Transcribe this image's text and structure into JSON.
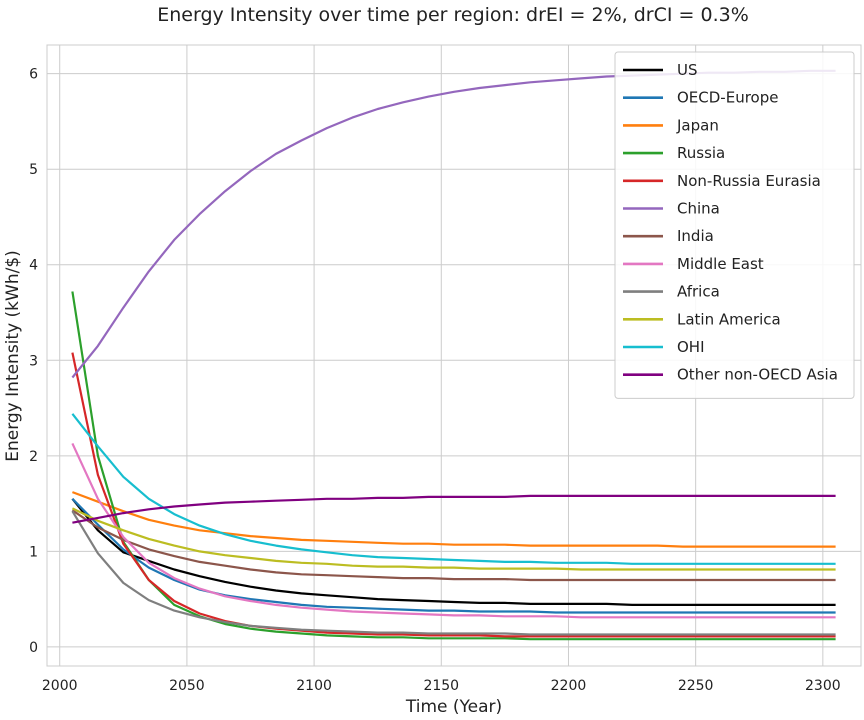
{
  "chart_data": {
    "type": "line",
    "title": "Energy Intensity over time per region: drEI = 2%, drCI = 0.3%",
    "xlabel": "Time (Year)",
    "ylabel": "Energy Intensity (kWh/$)",
    "xlim": [
      1995,
      2315
    ],
    "ylim": [
      -0.2,
      6.3
    ],
    "xticks": [
      2000,
      2050,
      2100,
      2150,
      2200,
      2250,
      2300
    ],
    "yticks": [
      0,
      1,
      2,
      3,
      4,
      5,
      6
    ],
    "grid": true,
    "legend_position": "top-right",
    "x": [
      2005,
      2015,
      2025,
      2035,
      2045,
      2055,
      2065,
      2075,
      2085,
      2095,
      2105,
      2115,
      2125,
      2135,
      2145,
      2155,
      2165,
      2175,
      2185,
      2195,
      2205,
      2215,
      2225,
      2235,
      2245,
      2255,
      2265,
      2275,
      2285,
      2295,
      2305
    ],
    "series": [
      {
        "name": "US",
        "color": "#000000",
        "values": [
          1.55,
          1.22,
          0.99,
          0.9,
          0.81,
          0.74,
          0.68,
          0.63,
          0.59,
          0.56,
          0.54,
          0.52,
          0.5,
          0.49,
          0.48,
          0.47,
          0.46,
          0.46,
          0.45,
          0.45,
          0.45,
          0.45,
          0.44,
          0.44,
          0.44,
          0.44,
          0.44,
          0.44,
          0.44,
          0.44,
          0.44
        ]
      },
      {
        "name": "OECD-Europe",
        "color": "#1f77b4",
        "values": [
          1.55,
          1.28,
          1.02,
          0.83,
          0.7,
          0.6,
          0.54,
          0.5,
          0.47,
          0.44,
          0.42,
          0.41,
          0.4,
          0.39,
          0.38,
          0.38,
          0.37,
          0.37,
          0.37,
          0.36,
          0.36,
          0.36,
          0.36,
          0.36,
          0.36,
          0.36,
          0.36,
          0.36,
          0.36,
          0.36,
          0.36
        ]
      },
      {
        "name": "Japan",
        "color": "#ff7f0e",
        "values": [
          1.62,
          1.52,
          1.42,
          1.33,
          1.27,
          1.22,
          1.19,
          1.16,
          1.14,
          1.12,
          1.11,
          1.1,
          1.09,
          1.08,
          1.08,
          1.07,
          1.07,
          1.07,
          1.06,
          1.06,
          1.06,
          1.06,
          1.06,
          1.06,
          1.05,
          1.05,
          1.05,
          1.05,
          1.05,
          1.05,
          1.05
        ]
      },
      {
        "name": "Russia",
        "color": "#2ca02c",
        "values": [
          3.72,
          2.0,
          1.1,
          0.7,
          0.44,
          0.32,
          0.24,
          0.19,
          0.16,
          0.14,
          0.12,
          0.11,
          0.1,
          0.1,
          0.09,
          0.09,
          0.09,
          0.09,
          0.08,
          0.08,
          0.08,
          0.08,
          0.08,
          0.08,
          0.08,
          0.08,
          0.08,
          0.08,
          0.08,
          0.08,
          0.08
        ]
      },
      {
        "name": "Non-Russia Eurasia",
        "color": "#d62728",
        "values": [
          3.08,
          1.8,
          1.08,
          0.7,
          0.48,
          0.35,
          0.27,
          0.22,
          0.19,
          0.17,
          0.15,
          0.14,
          0.13,
          0.13,
          0.12,
          0.12,
          0.12,
          0.11,
          0.11,
          0.11,
          0.11,
          0.11,
          0.11,
          0.11,
          0.11,
          0.11,
          0.11,
          0.11,
          0.11,
          0.11,
          0.11
        ]
      },
      {
        "name": "China",
        "color": "#9467bd",
        "values": [
          2.82,
          3.15,
          3.55,
          3.93,
          4.26,
          4.53,
          4.77,
          4.98,
          5.16,
          5.3,
          5.43,
          5.54,
          5.63,
          5.7,
          5.76,
          5.81,
          5.85,
          5.88,
          5.91,
          5.93,
          5.95,
          5.97,
          5.98,
          5.99,
          6.0,
          6.01,
          6.01,
          6.02,
          6.02,
          6.03,
          6.03
        ]
      },
      {
        "name": "India",
        "color": "#8c564b",
        "values": [
          1.43,
          1.25,
          1.12,
          1.02,
          0.95,
          0.89,
          0.85,
          0.81,
          0.78,
          0.76,
          0.75,
          0.74,
          0.73,
          0.72,
          0.72,
          0.71,
          0.71,
          0.71,
          0.7,
          0.7,
          0.7,
          0.7,
          0.7,
          0.7,
          0.7,
          0.7,
          0.7,
          0.7,
          0.7,
          0.7,
          0.7
        ]
      },
      {
        "name": "Middle East",
        "color": "#e377c2",
        "values": [
          2.13,
          1.55,
          1.15,
          0.88,
          0.72,
          0.61,
          0.53,
          0.48,
          0.44,
          0.41,
          0.39,
          0.37,
          0.36,
          0.35,
          0.34,
          0.33,
          0.33,
          0.32,
          0.32,
          0.32,
          0.31,
          0.31,
          0.31,
          0.31,
          0.31,
          0.31,
          0.31,
          0.31,
          0.31,
          0.31,
          0.31
        ]
      },
      {
        "name": "Africa",
        "color": "#7f7f7f",
        "values": [
          1.42,
          0.98,
          0.67,
          0.49,
          0.38,
          0.31,
          0.26,
          0.22,
          0.2,
          0.18,
          0.17,
          0.16,
          0.15,
          0.15,
          0.14,
          0.14,
          0.14,
          0.14,
          0.13,
          0.13,
          0.13,
          0.13,
          0.13,
          0.13,
          0.13,
          0.13,
          0.13,
          0.13,
          0.13,
          0.13,
          0.13
        ]
      },
      {
        "name": "Latin America",
        "color": "#bcbd22",
        "values": [
          1.45,
          1.32,
          1.22,
          1.13,
          1.06,
          1.0,
          0.96,
          0.93,
          0.9,
          0.88,
          0.87,
          0.85,
          0.84,
          0.84,
          0.83,
          0.83,
          0.82,
          0.82,
          0.82,
          0.82,
          0.81,
          0.81,
          0.81,
          0.81,
          0.81,
          0.81,
          0.81,
          0.81,
          0.81,
          0.81,
          0.81
        ]
      },
      {
        "name": "OHI",
        "color": "#17becf",
        "values": [
          2.44,
          2.1,
          1.78,
          1.55,
          1.39,
          1.27,
          1.18,
          1.11,
          1.06,
          1.02,
          0.99,
          0.96,
          0.94,
          0.93,
          0.92,
          0.91,
          0.9,
          0.89,
          0.89,
          0.88,
          0.88,
          0.88,
          0.87,
          0.87,
          0.87,
          0.87,
          0.87,
          0.87,
          0.87,
          0.87,
          0.87
        ]
      },
      {
        "name": "Other non-OECD Asia",
        "color": "#800080",
        "values": [
          1.3,
          1.35,
          1.4,
          1.44,
          1.47,
          1.49,
          1.51,
          1.52,
          1.53,
          1.54,
          1.55,
          1.55,
          1.56,
          1.56,
          1.57,
          1.57,
          1.57,
          1.57,
          1.58,
          1.58,
          1.58,
          1.58,
          1.58,
          1.58,
          1.58,
          1.58,
          1.58,
          1.58,
          1.58,
          1.58,
          1.58
        ]
      }
    ]
  }
}
